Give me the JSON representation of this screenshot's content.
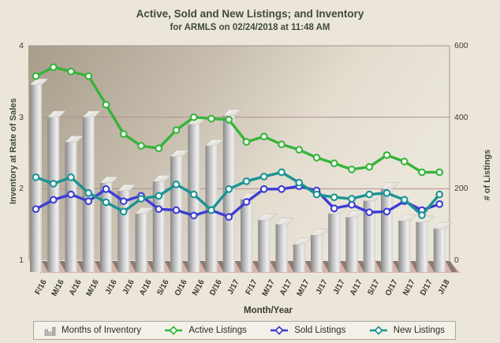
{
  "title": "Active, Sold and New Listings; and Inventory",
  "subtitle": "for ARMLS on 02/24/2018 at 11:48 AM",
  "colors": {
    "page_bg": "#ece6da",
    "title_text": "#3e4a3a",
    "plot_bg_dark": "#a89c8a",
    "plot_bg_light": "#ebe6da",
    "gridline": "#b48e8e",
    "floor": "#d7b4aa",
    "bar_dark": "#878787",
    "bar_light": "#efefef",
    "active_green": "#36b43a",
    "sold_blue": "#3d3dd4",
    "new_teal": "#1a9392",
    "legend_bg": "#f3f0e8"
  },
  "chart_data": {
    "type": "combo",
    "title": "Active, Sold and New Listings; and Inventory",
    "subtitle": "for ARMLS on 02/24/2018 at 11:48 AM",
    "categories": [
      "F/16",
      "M/16",
      "A/16",
      "M/16",
      "J/16",
      "J/16",
      "A/16",
      "S/16",
      "O/16",
      "N/16",
      "D/16",
      "J/17",
      "F/17",
      "M/17",
      "A/17",
      "M/17",
      "J/17",
      "J/17",
      "A/17",
      "S/17",
      "O/17",
      "N/17",
      "D/17",
      "J/18"
    ],
    "series": [
      {
        "name": "Months of Inventory",
        "type": "bar",
        "axis": "left",
        "color": "#9a9a9a",
        "values": [
          3.45,
          3.0,
          2.65,
          3.0,
          2.08,
          1.97,
          1.65,
          2.1,
          2.45,
          2.9,
          2.6,
          3.02,
          1.85,
          1.56,
          1.5,
          1.22,
          1.35,
          1.65,
          1.6,
          1.83,
          2.0,
          1.55,
          1.53,
          1.44
        ]
      },
      {
        "name": "Active Listings",
        "type": "line",
        "axis": "right",
        "color": "#36b43a",
        "values": [
          515,
          540,
          528,
          515,
          435,
          353,
          320,
          313,
          364,
          400,
          396,
          393,
          331,
          346,
          324,
          309,
          287,
          271,
          254,
          261,
          294,
          276,
          246,
          246
        ]
      },
      {
        "name": "Sold Listings",
        "type": "line",
        "axis": "right",
        "color": "#3d3dd4",
        "values": [
          143,
          169,
          184,
          165,
          199,
          165,
          180,
          143,
          140,
          125,
          140,
          121,
          163,
          199,
          199,
          207,
          195,
          145,
          155,
          134,
          136,
          165,
          140,
          157
        ]
      },
      {
        "name": "New Listings",
        "type": "line",
        "axis": "right",
        "color": "#1a9392",
        "values": [
          232,
          214,
          232,
          188,
          162,
          136,
          172,
          180,
          212,
          184,
          140,
          199,
          221,
          234,
          246,
          217,
          184,
          176,
          172,
          184,
          188,
          169,
          126,
          184
        ]
      }
    ],
    "left_axis": {
      "label": "Inventory at Rate of Sales",
      "ticks": [
        1,
        2,
        3,
        4
      ],
      "range": [
        1,
        4
      ]
    },
    "right_axis": {
      "label": "# of Listings",
      "ticks": [
        0,
        200,
        400,
        600
      ],
      "range": [
        0,
        600
      ]
    },
    "x_axis": {
      "label": "Month/Year"
    },
    "grid": "horizontal",
    "legend_position": "bottom",
    "legend": [
      "Months of Inventory",
      "Active Listings",
      "Sold Listings",
      "New Listings"
    ]
  }
}
